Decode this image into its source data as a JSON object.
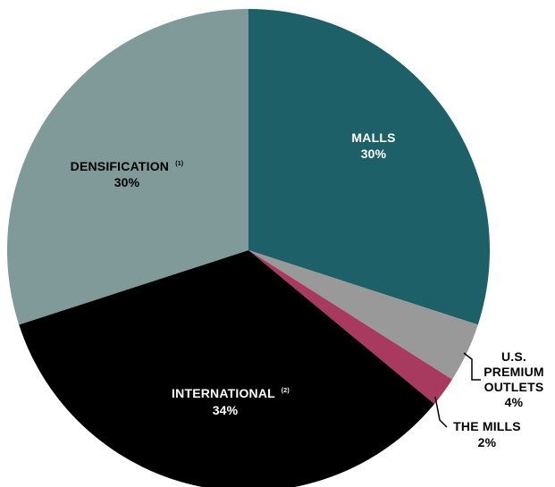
{
  "chart_data": {
    "type": "pie",
    "title": "",
    "slices": [
      {
        "label": "MALLS",
        "footnote": "",
        "value": 30,
        "value_label": "30%",
        "color": "#1e6068"
      },
      {
        "label": "U.S. PREMIUM OUTLETS",
        "footnote": "",
        "value": 4,
        "value_label": "4%",
        "color": "#999999"
      },
      {
        "label": "THE MILLS",
        "footnote": "",
        "value": 2,
        "value_label": "2%",
        "color": "#a83a60"
      },
      {
        "label": "INTERNATIONAL",
        "footnote": "(2)",
        "value": 34,
        "value_label": "34%",
        "color": "#000000"
      },
      {
        "label": "DENSIFICATION",
        "footnote": "(1)",
        "value": 30,
        "value_label": "30%",
        "color": "#7f9a98"
      }
    ],
    "label_lines": {
      "outlets": [
        "U.S.",
        "PREMIUM",
        "OUTLETS"
      ]
    },
    "start_angle_deg": 0,
    "direction": "clockwise",
    "colors": {
      "inside_text_light": "#ffffff",
      "inside_text_dark": "#000000",
      "leader_line": "#000000"
    }
  }
}
